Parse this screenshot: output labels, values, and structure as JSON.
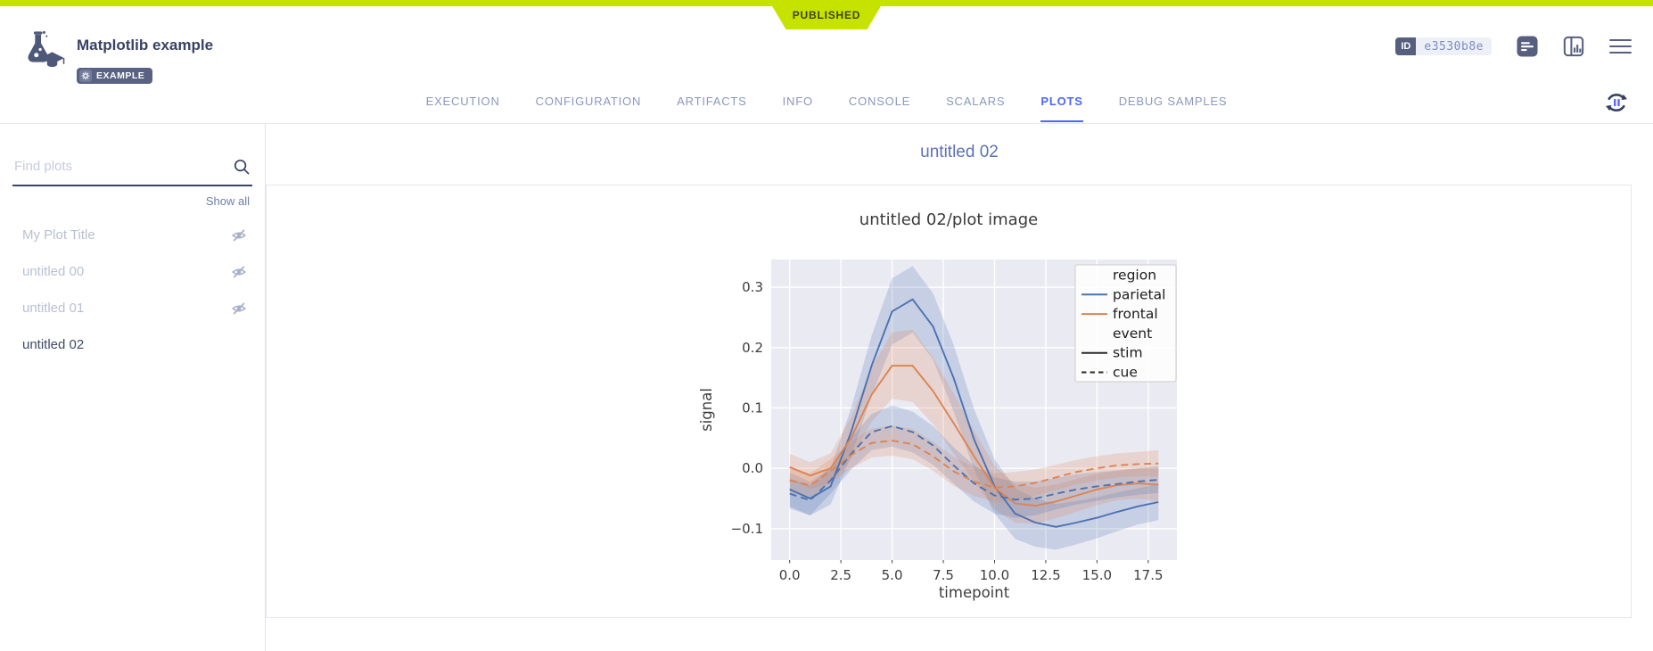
{
  "ribbon": {
    "label": "PUBLISHED",
    "color": "#c6e300"
  },
  "header": {
    "title": "Matplotlib example",
    "badge": "EXAMPLE",
    "id_label": "ID",
    "id_value": "e3530b8e"
  },
  "tabs": {
    "active_label": "PLOTS",
    "items": [
      {
        "label": "EXECUTION"
      },
      {
        "label": "CONFIGURATION"
      },
      {
        "label": "ARTIFACTS"
      },
      {
        "label": "INFO"
      },
      {
        "label": "CONSOLE"
      },
      {
        "label": "SCALARS"
      },
      {
        "label": "PLOTS"
      },
      {
        "label": "DEBUG SAMPLES"
      }
    ]
  },
  "sidebar": {
    "search_placeholder": "Find plots",
    "search_value": "",
    "show_all_label": "Show all",
    "items": [
      {
        "label": "My Plot Title",
        "hidden": true,
        "selected": false
      },
      {
        "label": "untitled 00",
        "hidden": true,
        "selected": false
      },
      {
        "label": "untitled 01",
        "hidden": true,
        "selected": false
      },
      {
        "label": "untitled 02",
        "hidden": false,
        "selected": true
      }
    ]
  },
  "main": {
    "group_title": "untitled 02"
  },
  "colors": {
    "accent": "#c6e300",
    "active_tab": "#4d66ff",
    "dark_slate": "#575f80",
    "parietal_blue": "#4c72b0",
    "frontal_orange": "#dd8452",
    "axes_background": "#eaeaf2"
  },
  "chart_data": {
    "type": "line",
    "title": "untitled 02/plot image",
    "xlabel": "timepoint",
    "ylabel": "signal",
    "xlim": [
      -0.9,
      18.9
    ],
    "ylim": [
      -0.152,
      0.346
    ],
    "grid": true,
    "legend_position": "upper right",
    "background": "#eaeaf2",
    "xticks": [
      0.0,
      2.5,
      5.0,
      7.5,
      10.0,
      12.5,
      15.0,
      17.5
    ],
    "xtick_labels": [
      "0.0",
      "2.5",
      "5.0",
      "7.5",
      "10.0",
      "12.5",
      "15.0",
      "17.5"
    ],
    "yticks": [
      -0.1,
      0.0,
      0.1,
      0.2,
      0.3
    ],
    "ytick_labels": [
      "−0.1",
      "0.0",
      "0.1",
      "0.2",
      "0.3"
    ],
    "x": [
      0,
      1,
      2,
      3,
      4,
      5,
      6,
      7,
      8,
      9,
      10,
      11,
      12,
      13,
      14,
      15,
      16,
      17,
      18
    ],
    "series": [
      {
        "name": "parietal-stim",
        "region": "parietal",
        "event": "stim",
        "color": "#4c72b0",
        "dash": false,
        "values": [
          -0.035,
          -0.05,
          -0.03,
          0.06,
          0.17,
          0.26,
          0.28,
          0.235,
          0.15,
          0.048,
          -0.03,
          -0.075,
          -0.09,
          -0.097,
          -0.09,
          -0.082,
          -0.072,
          -0.063,
          -0.056
        ],
        "ci": [
          0.028,
          0.028,
          0.03,
          0.04,
          0.05,
          0.055,
          0.055,
          0.055,
          0.055,
          0.05,
          0.045,
          0.042,
          0.04,
          0.038,
          0.036,
          0.034,
          0.032,
          0.03,
          0.03
        ]
      },
      {
        "name": "frontal-stim",
        "region": "frontal",
        "event": "stim",
        "color": "#dd8452",
        "dash": false,
        "values": [
          0.002,
          -0.012,
          0.0,
          0.05,
          0.122,
          0.17,
          0.17,
          0.128,
          0.075,
          0.02,
          -0.032,
          -0.058,
          -0.062,
          -0.055,
          -0.045,
          -0.035,
          -0.028,
          -0.025,
          -0.027
        ],
        "ci": [
          0.022,
          0.022,
          0.025,
          0.035,
          0.045,
          0.055,
          0.06,
          0.055,
          0.05,
          0.042,
          0.036,
          0.032,
          0.03,
          0.028,
          0.027,
          0.026,
          0.025,
          0.025,
          0.028
        ]
      },
      {
        "name": "parietal-cue",
        "region": "parietal",
        "event": "cue",
        "color": "#4c72b0",
        "dash": true,
        "values": [
          -0.042,
          -0.053,
          -0.02,
          0.024,
          0.06,
          0.07,
          0.06,
          0.038,
          0.005,
          -0.025,
          -0.045,
          -0.052,
          -0.05,
          -0.042,
          -0.035,
          -0.03,
          -0.026,
          -0.022,
          -0.019
        ],
        "ci": [
          0.025,
          0.025,
          0.022,
          0.026,
          0.03,
          0.034,
          0.034,
          0.032,
          0.03,
          0.03,
          0.03,
          0.03,
          0.028,
          0.026,
          0.025,
          0.024,
          0.022,
          0.022,
          0.022
        ]
      },
      {
        "name": "frontal-cue",
        "region": "frontal",
        "event": "cue",
        "color": "#dd8452",
        "dash": true,
        "values": [
          -0.02,
          -0.028,
          -0.005,
          0.022,
          0.042,
          0.046,
          0.04,
          0.02,
          -0.005,
          -0.022,
          -0.032,
          -0.03,
          -0.024,
          -0.015,
          -0.006,
          0.0,
          0.005,
          0.007,
          0.008
        ],
        "ci": [
          0.02,
          0.02,
          0.02,
          0.022,
          0.024,
          0.025,
          0.025,
          0.024,
          0.024,
          0.024,
          0.024,
          0.024,
          0.022,
          0.021,
          0.02,
          0.02,
          0.02,
          0.02,
          0.022
        ]
      }
    ],
    "legend_entries": [
      {
        "label": "region",
        "type": "header"
      },
      {
        "label": "parietal",
        "type": "line",
        "color": "#4c72b0",
        "dash": false
      },
      {
        "label": "frontal",
        "type": "line",
        "color": "#dd8452",
        "dash": false
      },
      {
        "label": "event",
        "type": "header"
      },
      {
        "label": "stim",
        "type": "line",
        "color": "#2b2b2b",
        "dash": false
      },
      {
        "label": "cue",
        "type": "line",
        "color": "#2b2b2b",
        "dash": true
      }
    ]
  }
}
